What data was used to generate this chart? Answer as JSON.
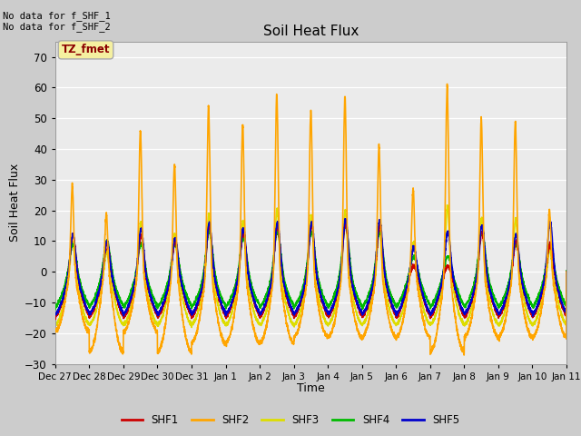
{
  "title": "Soil Heat Flux",
  "ylabel": "Soil Heat Flux",
  "xlabel": "Time",
  "n_days": 15,
  "ylim": [
    -30,
    75
  ],
  "yticks": [
    -30,
    -20,
    -10,
    0,
    10,
    20,
    30,
    40,
    50,
    60,
    70
  ],
  "xtick_labels": [
    "Dec 27",
    "Dec 28",
    "Dec 29",
    "Dec 30",
    "Dec 31",
    "Jan 1",
    "Jan 2",
    "Jan 3",
    "Jan 4",
    "Jan 5",
    "Jan 6",
    "Jan 7",
    "Jan 8",
    "Jan 9",
    "Jan 10",
    "Jan 11"
  ],
  "colors": {
    "SHF1": "#cc0000",
    "SHF2": "#ffa500",
    "SHF3": "#dddd00",
    "SHF4": "#00bb00",
    "SHF5": "#0000cc"
  },
  "fig_bg_color": "#cccccc",
  "plot_bg_color": "#ebebeb",
  "plot_bg_top": "#d8d8d8",
  "annotation_text1": "No data for f_SHF_1",
  "annotation_text2": "No data for f_SHF_2",
  "legend_label": "TZ_fmet",
  "linewidth": 1.2,
  "shf2_peaks": [
    28,
    19,
    46,
    35,
    54,
    48,
    58,
    53,
    57,
    41,
    27,
    61,
    50,
    49,
    20
  ],
  "shf2_troughs": [
    -20,
    -27,
    -20,
    -27,
    -24,
    -24,
    -24,
    -22,
    -22,
    -22,
    -22,
    -27,
    -22,
    -22,
    -22
  ],
  "shf1_peaks": [
    12,
    9,
    12,
    10,
    15,
    13,
    15,
    15,
    16,
    15,
    2,
    2,
    13,
    10,
    9
  ],
  "shf4_peaks": [
    9,
    10,
    9,
    9,
    13,
    11,
    13,
    13,
    15,
    13,
    5,
    5,
    13,
    9,
    9
  ],
  "shf5_peaks": [
    12,
    10,
    14,
    11,
    16,
    14,
    16,
    16,
    17,
    17,
    8,
    13,
    15,
    12,
    16
  ]
}
